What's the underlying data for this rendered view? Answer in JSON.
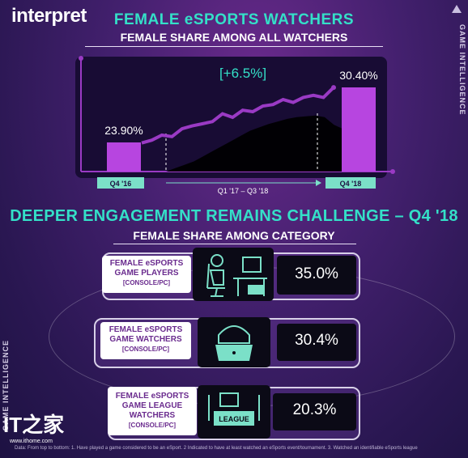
{
  "logo": "interpret",
  "side_tag_right": "GAME INTELLIGENCE",
  "side_tag_left": "GAME INTELLIGENCE",
  "header": {
    "title": "FEMALE eSPORTS WATCHERS",
    "subtitle": "FEMALE SHARE AMONG ALL WATCHERS"
  },
  "colors": {
    "teal": "#34e0c8",
    "purple_bar": "#b745e0",
    "line": "#9a3ac4",
    "area": "#000000",
    "label_bg": "#7be0c8"
  },
  "chart_data": [
    {
      "type": "bar",
      "categories": [
        "Q4 '16",
        "Q4 '18"
      ],
      "values": [
        23.9,
        30.4
      ],
      "data_labels": [
        "23.90%",
        "30.40%"
      ],
      "annotation": "[+6.5%]",
      "period_label": "Q1  '17 – Q3 '18",
      "trend_line": [
        0.06,
        0.1,
        0.17,
        0.15,
        0.26,
        0.3,
        0.33,
        0.36,
        0.47,
        0.42,
        0.52,
        0.5,
        0.58,
        0.6,
        0.67,
        0.63,
        0.7,
        0.73,
        0.7,
        0.84
      ],
      "trend_area": [
        0.0,
        0.04,
        0.08,
        0.12,
        0.18,
        0.24,
        0.3,
        0.36,
        0.42,
        0.48,
        0.52,
        0.56,
        0.59,
        0.62,
        0.64,
        0.65,
        0.66,
        0.64,
        0.55,
        0.5
      ],
      "title": "FEMALE SHARE AMONG ALL WATCHERS"
    },
    {
      "type": "table",
      "title": "FEMALE SHARE AMONG CATEGORY",
      "rows": [
        {
          "category": "FEMALE eSPORTS GAME PLAYERS",
          "value": 35.0,
          "display": "35.0%"
        },
        {
          "category": "FEMALE eSPORTS GAME WATCHERS",
          "value": 30.4,
          "display": "30.4%"
        },
        {
          "category": "FEMALE eSPORTS GAME LEAGUE WATCHERS",
          "value": 20.3,
          "display": "20.3%"
        }
      ]
    }
  ],
  "section2": {
    "title": "DEEPER ENGAGEMENT REMAINS CHALLENGE – Q4 '18",
    "subtitle": "FEMALE SHARE AMONG CATEGORY"
  },
  "categories": [
    {
      "line1": "FEMALE eSPORTS",
      "line2_a": "GAME ",
      "line2_b": "PLAYERS",
      "bracket": "[CONSOLE/PC]",
      "value": "35.0%",
      "icon": "gamer-chair-icon"
    },
    {
      "line1": "FEMALE eSPORTS",
      "line2_a": "GAME ",
      "line2_b": "WATCHERS",
      "bracket": "[CONSOLE/PC]",
      "value": "30.4%",
      "icon": "viewer-laptop-icon"
    },
    {
      "line1": "FEMALE eSPORTS",
      "line2_a": "GAME LEAGUE",
      "line2_b": "WATCHERS",
      "bracket": "[CONSOLE/PC]",
      "value": "20.3%",
      "icon": "league-stage-icon",
      "icon_text": "LEAGUE"
    }
  ],
  "watermark": {
    "brand": "IT之家",
    "url": "www.ithome.com"
  },
  "footnote": "Data: From top to bottom: 1. Have played a game considered to be an eSport. 2 Indicated to have at least watched an eSports event/tournament. 3. Watched an identifiable eSports league"
}
